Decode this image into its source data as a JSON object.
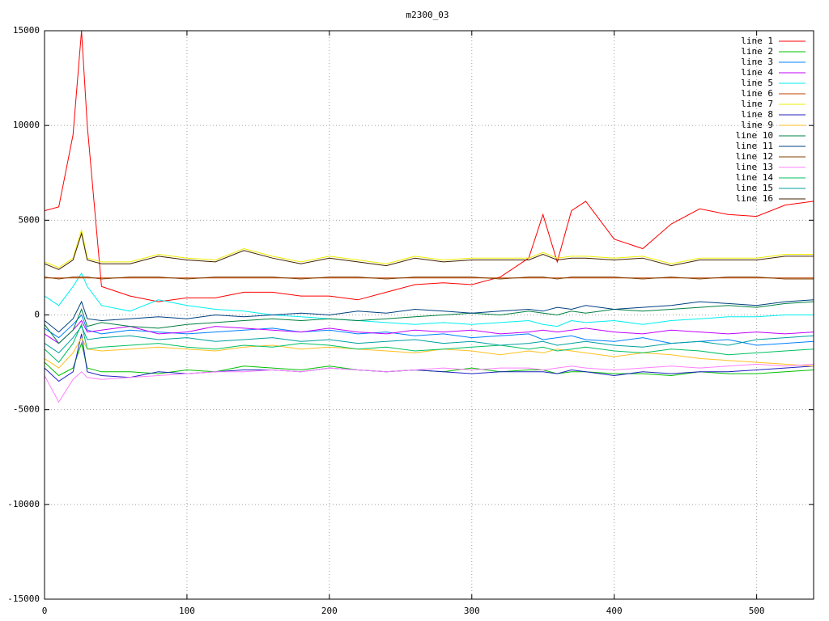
{
  "chart_data": {
    "type": "line",
    "title": "m2300_03",
    "x": [
      0,
      10,
      20,
      26,
      30,
      40,
      60,
      80,
      100,
      120,
      140,
      160,
      180,
      200,
      220,
      240,
      260,
      280,
      300,
      320,
      340,
      350,
      360,
      370,
      380,
      400,
      420,
      440,
      460,
      480,
      500,
      520,
      540
    ],
    "xlim": [
      0,
      540
    ],
    "ylim": [
      -15000,
      15000
    ],
    "xticks": [
      0,
      100,
      200,
      300,
      400,
      500
    ],
    "yticks": [
      -15000,
      -10000,
      -5000,
      0,
      5000,
      10000,
      15000
    ],
    "grid": true,
    "legend": "top-right",
    "series": [
      {
        "name": "line 1",
        "color": "#ff0000",
        "values": [
          5500,
          5700,
          9500,
          15000,
          10000,
          1500,
          1000,
          700,
          900,
          900,
          1200,
          1200,
          1000,
          1000,
          800,
          1200,
          1600,
          1700,
          1600,
          2000,
          3000,
          5300,
          2800,
          5500,
          6000,
          4000,
          3500,
          4800,
          5600,
          5300,
          5200,
          5800,
          6000
        ]
      },
      {
        "name": "line 2",
        "color": "#00c000",
        "values": [
          -2500,
          -3200,
          -2800,
          -1500,
          -2800,
          -3000,
          -3000,
          -3100,
          -2900,
          -3000,
          -2700,
          -2800,
          -2900,
          -2700,
          -2900,
          -3000,
          -2900,
          -3000,
          -2800,
          -3000,
          -2900,
          -2900,
          -3100,
          -3000,
          -3000,
          -3100,
          -3100,
          -3200,
          -3000,
          -3100,
          -3100,
          -3000,
          -2900
        ]
      },
      {
        "name": "line 3",
        "color": "#0080ff",
        "values": [
          -700,
          -1200,
          -500,
          0,
          -800,
          -1000,
          -800,
          -900,
          -1000,
          -900,
          -800,
          -700,
          -900,
          -800,
          -1000,
          -900,
          -1100,
          -1000,
          -1200,
          -1100,
          -1000,
          -1300,
          -1200,
          -1100,
          -1300,
          -1400,
          -1200,
          -1500,
          -1400,
          -1300,
          -1600,
          -1500,
          -1400
        ]
      },
      {
        "name": "line 4",
        "color": "#c000ff",
        "values": [
          -1000,
          -1500,
          -800,
          -300,
          -900,
          -800,
          -600,
          -1000,
          -900,
          -600,
          -700,
          -800,
          -900,
          -700,
          -900,
          -1000,
          -800,
          -900,
          -800,
          -1000,
          -900,
          -800,
          -900,
          -800,
          -700,
          -900,
          -1000,
          -800,
          -900,
          -1000,
          -900,
          -1000,
          -900
        ]
      },
      {
        "name": "line 5",
        "color": "#00eeee",
        "values": [
          1000,
          500,
          1500,
          2200,
          1500,
          500,
          200,
          800,
          500,
          300,
          200,
          0,
          -100,
          -200,
          -300,
          -400,
          -500,
          -400,
          -500,
          -400,
          -300,
          -500,
          -600,
          -300,
          -400,
          -300,
          -500,
          -300,
          -200,
          -100,
          -100,
          0,
          0
        ]
      },
      {
        "name": "line 6",
        "color": "#c04000",
        "values": [
          1950,
          1950,
          1950,
          1950,
          1950,
          1950,
          1950,
          1950,
          1950,
          1950,
          1950,
          1950,
          1950,
          1950,
          1950,
          1950,
          1950,
          1950,
          1950,
          1950,
          1950,
          1950,
          1950,
          1950,
          1950,
          1950,
          1950,
          1950,
          1950,
          1950,
          1950,
          1950,
          1950
        ]
      },
      {
        "name": "line 7",
        "color": "#eeee00",
        "values": [
          2800,
          2500,
          3000,
          4500,
          3000,
          2800,
          2800,
          3200,
          3000,
          2900,
          3500,
          3100,
          2800,
          3100,
          2900,
          2700,
          3100,
          2900,
          3000,
          3000,
          3000,
          3300,
          3000,
          3100,
          3100,
          3000,
          3100,
          2700,
          3000,
          3000,
          3000,
          3200,
          3200
        ]
      },
      {
        "name": "line 8",
        "color": "#2020c0",
        "values": [
          -2800,
          -3500,
          -3000,
          -1000,
          -3000,
          -3200,
          -3300,
          -3000,
          -3100,
          -3000,
          -2900,
          -2900,
          -3000,
          -2800,
          -2900,
          -3000,
          -2900,
          -3000,
          -3100,
          -3000,
          -3000,
          -3000,
          -3100,
          -2900,
          -3000,
          -3200,
          -3000,
          -3100,
          -3000,
          -3000,
          -2900,
          -2800,
          -2700
        ]
      },
      {
        "name": "line 9",
        "color": "#ffc020",
        "values": [
          -2300,
          -2800,
          -2000,
          -1200,
          -1800,
          -1900,
          -1800,
          -1700,
          -1800,
          -1900,
          -1700,
          -1600,
          -1800,
          -1700,
          -1800,
          -1900,
          -2000,
          -1800,
          -1900,
          -2100,
          -1900,
          -2000,
          -1800,
          -1900,
          -2000,
          -2200,
          -2000,
          -2100,
          -2300,
          -2400,
          -2500,
          -2600,
          -2700
        ]
      },
      {
        "name": "line 10",
        "color": "#008040",
        "values": [
          -500,
          -1500,
          -800,
          300,
          -600,
          -400,
          -600,
          -700,
          -500,
          -400,
          -300,
          -200,
          -300,
          -200,
          -300,
          -200,
          -100,
          0,
          100,
          0,
          200,
          100,
          0,
          200,
          100,
          300,
          200,
          300,
          400,
          500,
          400,
          600,
          700
        ]
      },
      {
        "name": "line 11",
        "color": "#004080",
        "values": [
          -300,
          -900,
          -200,
          700,
          -200,
          -300,
          -200,
          -100,
          -200,
          0,
          -100,
          0,
          100,
          0,
          200,
          100,
          300,
          200,
          100,
          200,
          300,
          200,
          400,
          300,
          500,
          300,
          400,
          500,
          700,
          600,
          500,
          700,
          800
        ]
      },
      {
        "name": "line 12",
        "color": "#804000",
        "values": [
          2000,
          1900,
          2000,
          2000,
          2000,
          1900,
          2000,
          2000,
          1900,
          2000,
          2000,
          2000,
          1900,
          2000,
          2000,
          1900,
          2000,
          2000,
          2000,
          1900,
          2000,
          2000,
          1900,
          2000,
          2000,
          2000,
          1900,
          2000,
          1900,
          2000,
          2000,
          1900,
          1900
        ]
      },
      {
        "name": "line 13",
        "color": "#ff80ff",
        "values": [
          -3200,
          -4600,
          -3400,
          -3000,
          -3300,
          -3400,
          -3300,
          -3200,
          -3100,
          -3000,
          -3000,
          -2900,
          -3000,
          -2800,
          -2900,
          -3000,
          -2900,
          -2800,
          -2900,
          -2800,
          -2800,
          -2900,
          -2800,
          -2700,
          -2800,
          -2900,
          -2800,
          -2700,
          -2800,
          -2700,
          -2600,
          -2700,
          -2600
        ]
      },
      {
        "name": "line 14",
        "color": "#00c060",
        "values": [
          -1800,
          -2500,
          -1500,
          -500,
          -1800,
          -1700,
          -1600,
          -1500,
          -1700,
          -1800,
          -1600,
          -1700,
          -1500,
          -1600,
          -1800,
          -1700,
          -1900,
          -1800,
          -1700,
          -1600,
          -1800,
          -1700,
          -1900,
          -1800,
          -1700,
          -1900,
          -2000,
          -1800,
          -1900,
          -2100,
          -2000,
          -1900,
          -1800
        ]
      },
      {
        "name": "line 15",
        "color": "#00a0a0",
        "values": [
          -1500,
          -2000,
          -1200,
          -600,
          -1300,
          -1200,
          -1100,
          -1300,
          -1200,
          -1400,
          -1300,
          -1200,
          -1400,
          -1300,
          -1500,
          -1400,
          -1300,
          -1500,
          -1400,
          -1600,
          -1500,
          -1400,
          -1600,
          -1500,
          -1400,
          -1600,
          -1700,
          -1500,
          -1400,
          -1600,
          -1300,
          -1200,
          -1100
        ]
      },
      {
        "name": "line 16",
        "color": "#402000",
        "values": [
          2700,
          2400,
          2900,
          4300,
          2900,
          2700,
          2700,
          3100,
          2900,
          2800,
          3400,
          3000,
          2700,
          3000,
          2800,
          2600,
          3000,
          2800,
          2900,
          2900,
          2900,
          3200,
          2900,
          3000,
          3000,
          2900,
          3000,
          2600,
          2900,
          2900,
          2900,
          3100,
          3100
        ]
      }
    ]
  }
}
